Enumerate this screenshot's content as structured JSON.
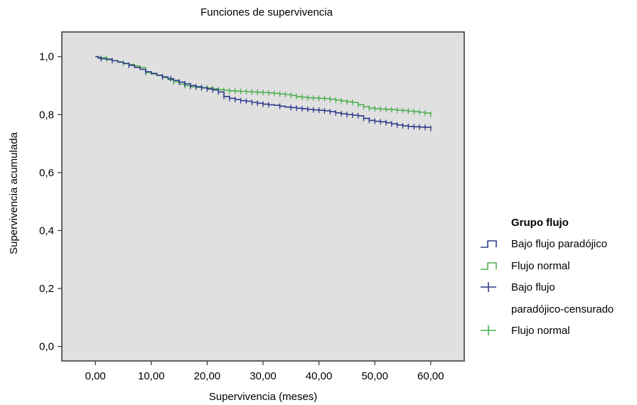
{
  "chart_data": {
    "type": "line",
    "title": "Funciones de supervivencia",
    "xlabel": "Supervivencia (meses)",
    "ylabel": "Supervivencia acumulada",
    "xlim": [
      -6,
      66
    ],
    "ylim": [
      -0.05,
      1.085
    ],
    "xticks": [
      0,
      10,
      20,
      30,
      40,
      50,
      60
    ],
    "xtick_labels": [
      "0,00",
      "10,00",
      "20,00",
      "30,00",
      "40,00",
      "50,00",
      "60,00"
    ],
    "yticks": [
      0.0,
      0.2,
      0.4,
      0.6,
      0.8,
      1.0
    ],
    "ytick_labels": [
      "0,0",
      "0,2",
      "0,4",
      "0,6",
      "0,8",
      "1,0"
    ],
    "grid": false,
    "plot_background": "#e0e0e0",
    "legend": {
      "title": "Grupo flujo",
      "position": "right",
      "entries": [
        {
          "label": "Bajo flujo paradójico",
          "symbol": "step",
          "color": "#2e3a8c"
        },
        {
          "label": "Flujo normal",
          "symbol": "step",
          "color": "#4caf50"
        },
        {
          "label_lines": [
            "Bajo flujo",
            "paradójico-censurado"
          ],
          "symbol": "cross",
          "color": "#2e3a8c"
        },
        {
          "label": "Flujo normal",
          "symbol": "cross",
          "color": "#4caf50"
        }
      ]
    },
    "series": [
      {
        "name": "Bajo flujo paradójico",
        "color": "#2e3a8c",
        "x": [
          0,
          0.5,
          1,
          2,
          3,
          4,
          5,
          6,
          7,
          8,
          9,
          10,
          11,
          12,
          13,
          14,
          15,
          16,
          17,
          18,
          19,
          20,
          21,
          22,
          23,
          24,
          25,
          26,
          27,
          28,
          29,
          30,
          31,
          32,
          33,
          34,
          35,
          36,
          37,
          38,
          39,
          40,
          41,
          42,
          43,
          44,
          45,
          46,
          47,
          48,
          49,
          50,
          51,
          52,
          53,
          54,
          55,
          56,
          57,
          58,
          59,
          60
        ],
        "y": [
          1.0,
          0.995,
          0.993,
          0.99,
          0.986,
          0.981,
          0.976,
          0.97,
          0.963,
          0.956,
          0.948,
          0.942,
          0.936,
          0.93,
          0.924,
          0.918,
          0.912,
          0.906,
          0.9,
          0.896,
          0.892,
          0.888,
          0.885,
          0.878,
          0.862,
          0.856,
          0.852,
          0.848,
          0.846,
          0.842,
          0.839,
          0.836,
          0.834,
          0.832,
          0.829,
          0.826,
          0.824,
          0.822,
          0.82,
          0.818,
          0.816,
          0.815,
          0.813,
          0.81,
          0.806,
          0.803,
          0.8,
          0.798,
          0.796,
          0.787,
          0.78,
          0.777,
          0.775,
          0.772,
          0.768,
          0.764,
          0.761,
          0.759,
          0.758,
          0.757,
          0.756,
          0.752
        ]
      },
      {
        "name": "Flujo normal",
        "color": "#4caf50",
        "x": [
          0,
          0.5,
          1,
          2,
          3,
          4,
          5,
          6,
          7,
          8,
          9,
          10,
          11,
          12,
          13,
          14,
          15,
          16,
          17,
          18,
          19,
          20,
          21,
          22,
          23,
          24,
          25,
          26,
          27,
          28,
          29,
          30,
          31,
          32,
          33,
          34,
          35,
          36,
          37,
          38,
          39,
          40,
          41,
          42,
          43,
          44,
          45,
          46,
          47,
          48,
          49,
          50,
          51,
          52,
          53,
          54,
          55,
          56,
          57,
          58,
          59,
          60
        ],
        "y": [
          1.0,
          0.998,
          0.996,
          0.992,
          0.986,
          0.982,
          0.977,
          0.973,
          0.968,
          0.962,
          0.945,
          0.94,
          0.935,
          0.928,
          0.921,
          0.913,
          0.905,
          0.9,
          0.896,
          0.894,
          0.893,
          0.892,
          0.889,
          0.886,
          0.884,
          0.882,
          0.881,
          0.88,
          0.879,
          0.878,
          0.877,
          0.876,
          0.875,
          0.873,
          0.871,
          0.869,
          0.866,
          0.862,
          0.86,
          0.858,
          0.857,
          0.856,
          0.855,
          0.853,
          0.85,
          0.847,
          0.844,
          0.842,
          0.834,
          0.827,
          0.822,
          0.82,
          0.819,
          0.818,
          0.817,
          0.815,
          0.814,
          0.812,
          0.81,
          0.808,
          0.805,
          0.8
        ]
      }
    ],
    "censored": [
      {
        "series": "Bajo flujo paradójico",
        "x": [
          1,
          3,
          6,
          9,
          12,
          13.5,
          15,
          16,
          17,
          18,
          19,
          20,
          21,
          22,
          23,
          24,
          25,
          26,
          27,
          28,
          29,
          30,
          31,
          33,
          35,
          36,
          37,
          38,
          39,
          40,
          41,
          42,
          43,
          44,
          45,
          46,
          47,
          48,
          49,
          50,
          51,
          52,
          53,
          54,
          55,
          56,
          57,
          58,
          59,
          60
        ]
      },
      {
        "series": "Flujo normal",
        "x": [
          2,
          5,
          9,
          14,
          16,
          17,
          18,
          19,
          20,
          21,
          22,
          23,
          24,
          25,
          26,
          27,
          28,
          29,
          30,
          31,
          32,
          33,
          34,
          35,
          36,
          37,
          38,
          39,
          40,
          41,
          42,
          43,
          44,
          45,
          46,
          47,
          48,
          49,
          50,
          51,
          52,
          53,
          54,
          55,
          56,
          57,
          58,
          59,
          60
        ]
      }
    ]
  }
}
